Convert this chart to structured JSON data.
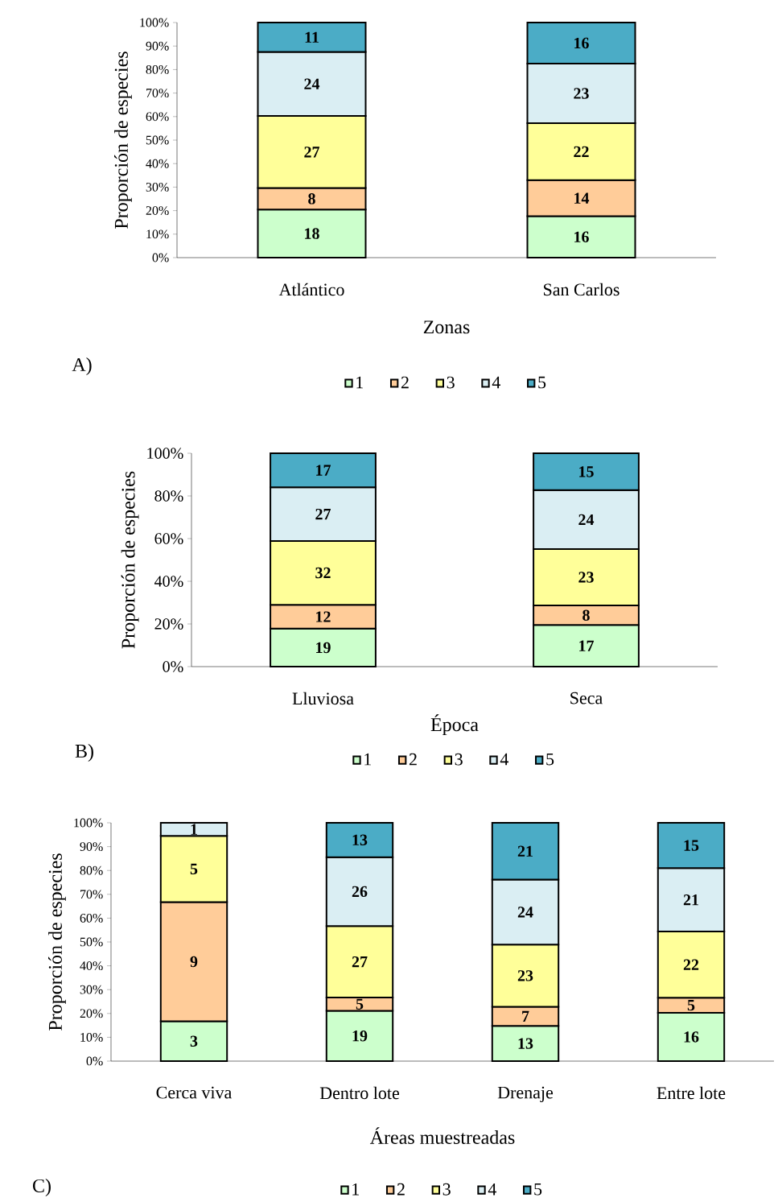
{
  "chart_data": [
    {
      "type": "bar",
      "stacked": true,
      "xlabel": "Zonas",
      "ylabel": "Proporción de especies",
      "legend": "bottom",
      "categories": [
        "Atlántico",
        "San Carlos"
      ],
      "ylim": [
        0,
        100
      ],
      "yticks": [
        {
          "value": 0,
          "label": "0%"
        },
        {
          "value": 10,
          "label": "10%"
        },
        {
          "value": 20,
          "label": "20%"
        },
        {
          "value": 30,
          "label": "30%"
        },
        {
          "value": 40,
          "label": "40%"
        },
        {
          "value": 50,
          "label": "50%"
        },
        {
          "value": 60,
          "label": "60%"
        },
        {
          "value": 70,
          "label": "70%"
        },
        {
          "value": 80,
          "label": "80%"
        },
        {
          "value": 90,
          "label": "90%"
        },
        {
          "value": 100,
          "label": "100%"
        }
      ],
      "series": [
        {
          "name": "1",
          "color": "#ccffcc",
          "values": [
            20.5,
            17.6
          ]
        },
        {
          "name": "2",
          "color": "#ffcc99",
          "values": [
            9.1,
            15.4
          ]
        },
        {
          "name": "3",
          "color": "#ffff99",
          "values": [
            30.7,
            24.2
          ]
        },
        {
          "name": "4",
          "color": "#daeef3",
          "values": [
            27.2,
            25.3
          ]
        },
        {
          "name": "5",
          "color": "#4bacc6",
          "values": [
            12.5,
            17.5
          ]
        }
      ],
      "annotations": [
        "A)",
        "18",
        "8",
        "27",
        "24",
        "11",
        "16",
        "14",
        "22",
        "23",
        "16"
      ]
    },
    {
      "type": "bar",
      "stacked": true,
      "xlabel": "Época",
      "ylabel": "Proporción de especies",
      "legend": "bottom",
      "categories": [
        "Lluviosa",
        "Seca"
      ],
      "ylim": [
        0,
        100
      ],
      "yticks": [
        {
          "value": 0,
          "label": "0%"
        },
        {
          "value": 20,
          "label": "20%"
        },
        {
          "value": 40,
          "label": "40%"
        },
        {
          "value": 60,
          "label": "60%"
        },
        {
          "value": 80,
          "label": "80%"
        },
        {
          "value": 100,
          "label": "100%"
        }
      ],
      "series": [
        {
          "name": "1",
          "color": "#ccffcc",
          "values": [
            17.8,
            19.5
          ]
        },
        {
          "name": "2",
          "color": "#ffcc99",
          "values": [
            11.2,
            9.2
          ]
        },
        {
          "name": "3",
          "color": "#ffff99",
          "values": [
            29.9,
            26.4
          ]
        },
        {
          "name": "4",
          "color": "#daeef3",
          "values": [
            25.2,
            27.6
          ]
        },
        {
          "name": "5",
          "color": "#4bacc6",
          "values": [
            15.9,
            17.3
          ]
        }
      ],
      "annotations": [
        "B)",
        "19",
        "12",
        "32",
        "27",
        "17",
        "17",
        "8",
        "23",
        "24",
        "15"
      ]
    },
    {
      "type": "bar",
      "stacked": true,
      "xlabel": "Áreas muestreadas",
      "ylabel": "Proporción de especies",
      "legend": "bottom",
      "categories": [
        "Cerca viva",
        "Dentro lote",
        "Drenaje",
        "Entre lote"
      ],
      "ylim": [
        0,
        100
      ],
      "yticks": [
        {
          "value": 0,
          "label": "0%"
        },
        {
          "value": 10,
          "label": "10%"
        },
        {
          "value": 20,
          "label": "20%"
        },
        {
          "value": 30,
          "label": "30%"
        },
        {
          "value": 40,
          "label": "40%"
        },
        {
          "value": 50,
          "label": "50%"
        },
        {
          "value": 60,
          "label": "60%"
        },
        {
          "value": 70,
          "label": "70%"
        },
        {
          "value": 80,
          "label": "80%"
        },
        {
          "value": 90,
          "label": "90%"
        },
        {
          "value": 100,
          "label": "100%"
        }
      ],
      "series": [
        {
          "name": "1",
          "color": "#ccffcc",
          "values": [
            16.7,
            21.1,
            14.8,
            20.3
          ]
        },
        {
          "name": "2",
          "color": "#ffcc99",
          "values": [
            50.0,
            5.6,
            8.0,
            6.3
          ]
        },
        {
          "name": "3",
          "color": "#ffff99",
          "values": [
            27.8,
            30.0,
            26.1,
            27.8
          ]
        },
        {
          "name": "4",
          "color": "#daeef3",
          "values": [
            5.5,
            28.9,
            27.3,
            26.6
          ]
        },
        {
          "name": "5",
          "color": "#4bacc6",
          "values": [
            null,
            14.4,
            23.8,
            19.0
          ]
        }
      ],
      "annotations": [
        "C)",
        "3",
        "9",
        "5",
        "1",
        "19",
        "5",
        "27",
        "26",
        "13",
        "13",
        "7",
        "23",
        "24",
        "21",
        "16",
        "5",
        "22",
        "21",
        "15"
      ]
    }
  ]
}
